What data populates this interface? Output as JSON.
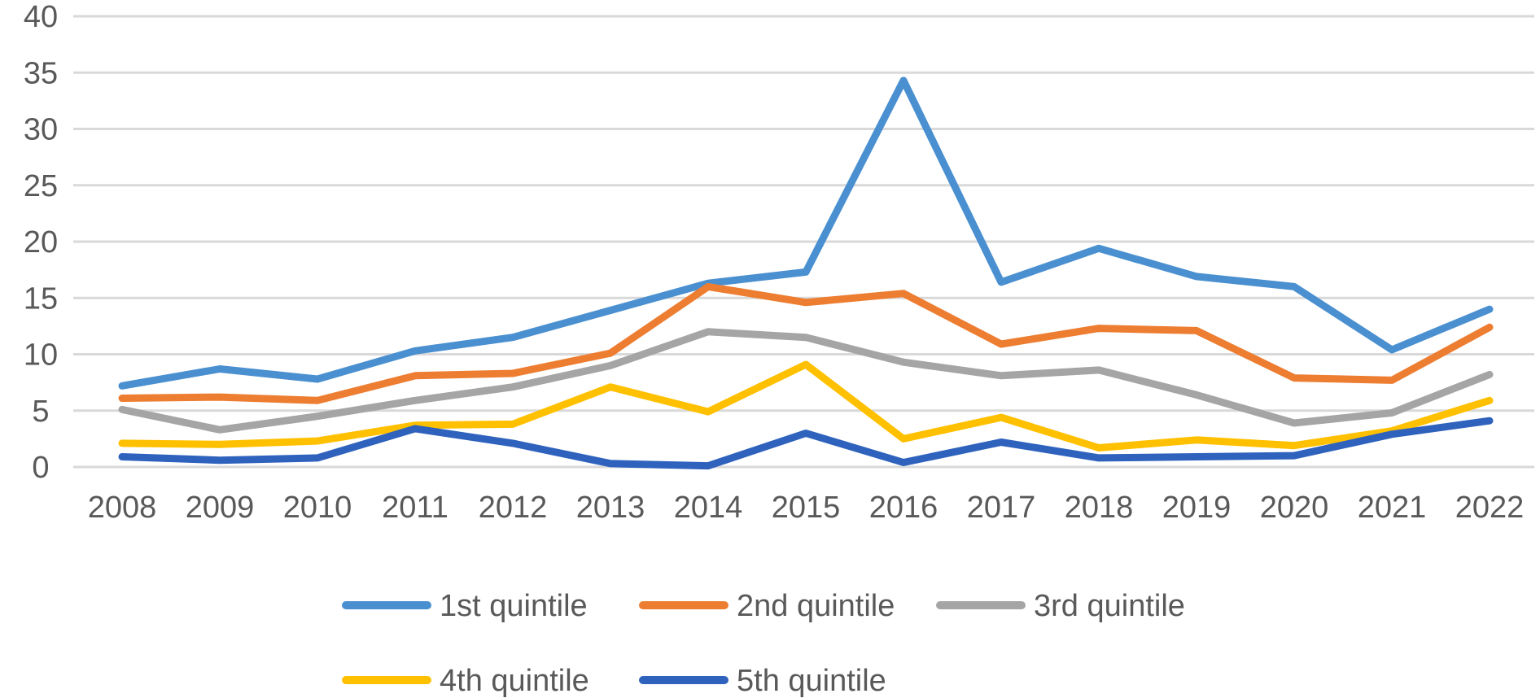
{
  "chart_data": {
    "type": "line",
    "title": "",
    "xlabel": "",
    "ylabel": "",
    "x": [
      "2008",
      "2009",
      "2010",
      "2011",
      "2012",
      "2013",
      "2014",
      "2015",
      "2016",
      "2017",
      "2018",
      "2019",
      "2020",
      "2021",
      "2022"
    ],
    "ylim": [
      0,
      40
    ],
    "yticks": [
      "0",
      "5",
      "10",
      "15",
      "20",
      "25",
      "30",
      "35",
      "40"
    ],
    "grid": true,
    "legend_position": "bottom",
    "series": [
      {
        "name": "1st quintile",
        "color": "#4a90d0",
        "values": [
          7.2,
          8.7,
          7.8,
          10.3,
          11.5,
          13.9,
          16.3,
          17.3,
          34.3,
          16.4,
          19.4,
          16.9,
          16.0,
          10.4,
          14.0
        ]
      },
      {
        "name": "2nd quintile",
        "color": "#ed7d31",
        "values": [
          6.1,
          6.2,
          5.9,
          8.1,
          8.3,
          10.1,
          16.0,
          14.6,
          15.4,
          10.9,
          12.3,
          12.1,
          7.9,
          7.7,
          12.4
        ]
      },
      {
        "name": "3rd quintile",
        "color": "#a5a5a5",
        "values": [
          5.1,
          3.3,
          4.5,
          5.9,
          7.1,
          9.0,
          12.0,
          11.5,
          9.3,
          8.1,
          8.6,
          6.4,
          3.9,
          4.8,
          8.2
        ]
      },
      {
        "name": "4th quintile",
        "color": "#ffc000",
        "values": [
          2.1,
          2.0,
          2.3,
          3.7,
          3.8,
          7.1,
          4.9,
          9.1,
          2.5,
          4.4,
          1.7,
          2.4,
          1.9,
          3.2,
          5.9
        ]
      },
      {
        "name": "5th quintile",
        "color": "#2e62bd",
        "values": [
          0.9,
          0.6,
          0.8,
          3.4,
          2.1,
          0.3,
          0.1,
          3.0,
          0.4,
          2.2,
          0.8,
          0.9,
          1.0,
          2.9,
          4.1
        ]
      }
    ]
  }
}
